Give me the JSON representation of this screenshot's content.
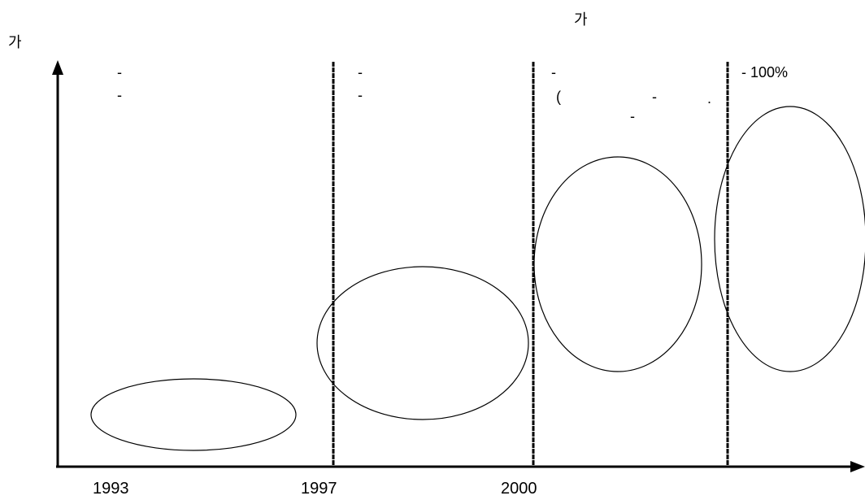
{
  "top_label": "가",
  "y_axis_label": "가",
  "x_axis": {
    "years": [
      "1993",
      "1997",
      "2000"
    ]
  },
  "periods": [
    {
      "bullets": [
        "-",
        "-"
      ]
    },
    {
      "bullets": [
        "-",
        "-"
      ]
    },
    {
      "bullets": [
        "-",
        "(",
        "-",
        ".",
        "-"
      ]
    },
    {
      "bullets": [
        "- 100%"
      ]
    }
  ]
}
